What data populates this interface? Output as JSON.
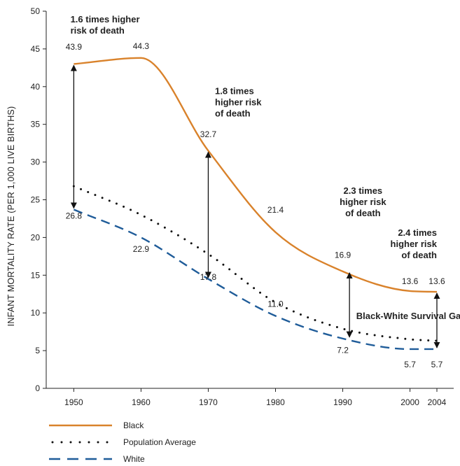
{
  "chart_data": {
    "type": "line",
    "ylabel": "INFANT MORTALITY RATE (PER 1,000 LIVE BIRTHS)",
    "xlabel": "",
    "ylim": [
      0,
      50
    ],
    "yticks": [
      0,
      5,
      10,
      15,
      20,
      25,
      30,
      35,
      40,
      45,
      50
    ],
    "x_ticks": [
      1950,
      1960,
      1970,
      1980,
      1990,
      2000,
      2004
    ],
    "legend_position": "bottom-left",
    "series": [
      {
        "name": "Black",
        "style": "solid",
        "color": "#D9822B",
        "x": [
          1950,
          1960,
          1970,
          1980,
          1990,
          2000,
          2004
        ],
        "values": [
          43.9,
          44.3,
          32.7,
          21.4,
          16.9,
          13.6,
          13.6
        ],
        "plot_y": [
          43.0,
          43.8,
          31.5,
          20.7,
          15.5,
          12.9,
          12.8
        ]
      },
      {
        "name": "Population Average",
        "style": "dotted",
        "color": "#111111",
        "x": [
          1950,
          1960,
          1970,
          1980,
          1990,
          2000,
          2004
        ],
        "values": [
          26.8,
          22.9,
          17.8,
          11.0,
          7.2,
          5.7,
          5.7
        ],
        "plot_y": [
          26.8,
          23.0,
          17.8,
          11.4,
          7.9,
          6.5,
          6.3
        ]
      },
      {
        "name": "White",
        "style": "dashed",
        "color": "#1F5C99",
        "x": [
          1950,
          1960,
          1970,
          1980,
          1990,
          2000,
          2004
        ],
        "values": [
          26.8,
          22.9,
          17.8,
          11.0,
          7.2,
          5.7,
          5.7
        ],
        "plot_y": [
          23.7,
          20.0,
          14.5,
          9.6,
          6.6,
          5.2,
          5.2
        ]
      }
    ],
    "gap_arrows": [
      {
        "x": 1950,
        "top": 43.0,
        "bottom": 23.7
      },
      {
        "x": 1970,
        "top": 31.5,
        "bottom": 14.5
      },
      {
        "x": 1991,
        "top": 15.5,
        "bottom": 6.6
      },
      {
        "x": 2004,
        "top": 12.8,
        "bottom": 5.2
      }
    ],
    "data_labels": [
      {
        "text": "43.9",
        "x": 1950,
        "y": 44.9
      },
      {
        "text": "44.3",
        "x": 1960,
        "y": 45.0
      },
      {
        "text": "32.7",
        "x": 1970,
        "y": 33.3
      },
      {
        "text": "21.4",
        "x": 1980,
        "y": 23.3
      },
      {
        "text": "16.9",
        "x": 1990,
        "y": 17.3
      },
      {
        "text": "13.6",
        "x": 2000,
        "y": 13.8
      },
      {
        "text": "13.6",
        "x": 2004,
        "y": 13.8
      },
      {
        "text": "26.8",
        "x": 1950,
        "y": 22.5
      },
      {
        "text": "22.9",
        "x": 1960,
        "y": 18.1
      },
      {
        "text": "17.8",
        "x": 1970,
        "y": 14.4
      },
      {
        "text": "11.0",
        "x": 1980,
        "y": 10.8
      },
      {
        "text": "7.2",
        "x": 1990,
        "y": 4.7
      },
      {
        "text": "5.7",
        "x": 2000,
        "y": 2.8
      },
      {
        "text": "5.7",
        "x": 2004,
        "y": 2.8
      }
    ],
    "annotations": [
      {
        "lines": [
          "1.6 times higher",
          "risk of death"
        ],
        "x": 1949.5,
        "y": 48.5,
        "anchor": "start"
      },
      {
        "lines": [
          "1.8 times",
          "higher risk",
          "of death"
        ],
        "x": 1971,
        "y": 39.0,
        "anchor": "start"
      },
      {
        "lines": [
          "2.3  times",
          "higher risk",
          "of death"
        ],
        "x": 1993,
        "y": 25.8,
        "anchor": "middle"
      },
      {
        "lines": [
          "2.4  times",
          "higher risk",
          "of death"
        ],
        "x": 2004,
        "y": 20.2,
        "anchor": "end"
      },
      {
        "lines": [
          "Black-White Survival Gap"
        ],
        "x": 1992,
        "y": 9.2,
        "anchor": "start"
      }
    ]
  },
  "legend": [
    {
      "label": "Black",
      "style": "solid",
      "color": "#D9822B"
    },
    {
      "label": "Population Average",
      "style": "dotted",
      "color": "#111111"
    },
    {
      "label": "White",
      "style": "dashed",
      "color": "#1F5C99"
    }
  ]
}
